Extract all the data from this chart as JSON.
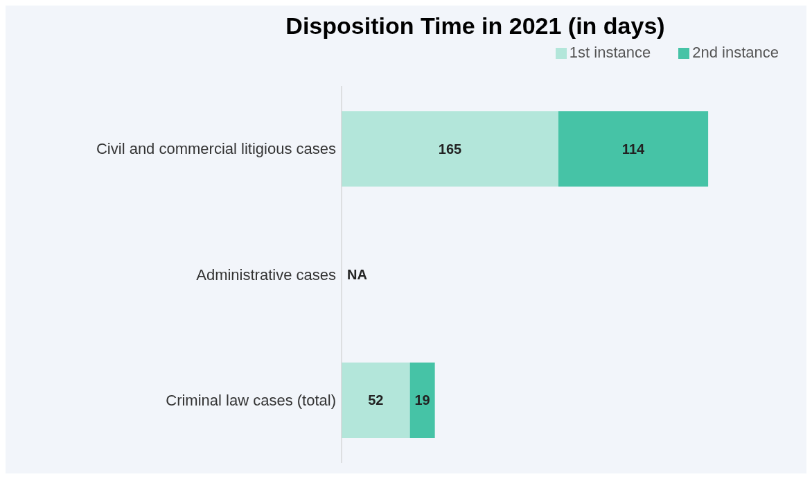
{
  "chart_data": {
    "type": "bar",
    "title": "Disposition Time in 2021 (in days)",
    "orientation": "horizontal",
    "stacked": true,
    "categories": [
      "Civil and commercial litigious cases",
      "Administrative cases",
      "Criminal law cases (total)"
    ],
    "series": [
      {
        "name": "1st instance",
        "color": "#b3e6da",
        "values": [
          165,
          null,
          52
        ],
        "value_labels": [
          "165",
          "NA",
          "52"
        ]
      },
      {
        "name": "2nd instance",
        "color": "#46c3a6",
        "values": [
          114,
          null,
          19
        ],
        "value_labels": [
          "114",
          null,
          "19"
        ]
      }
    ],
    "tick_labels": "y",
    "legend": "top right"
  }
}
